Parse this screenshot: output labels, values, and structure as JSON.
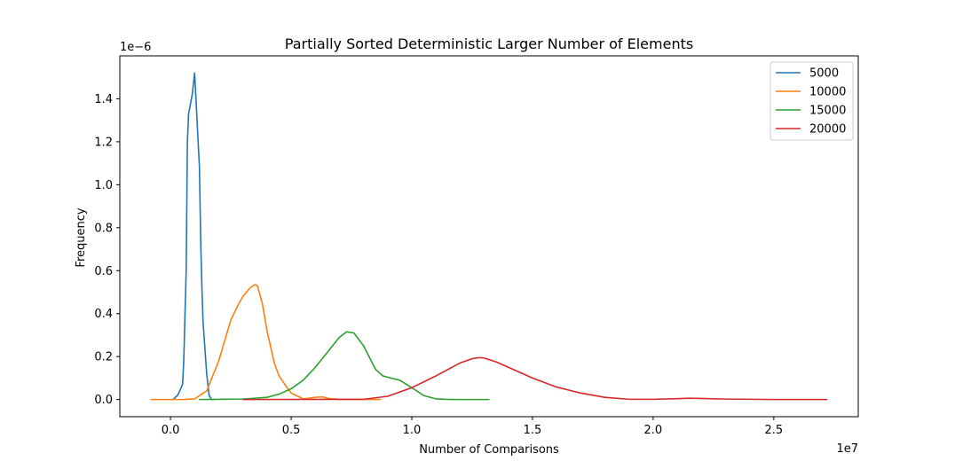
{
  "chart_data": {
    "type": "line",
    "title": "Partially Sorted Deterministic Larger Number of Elements",
    "xlabel": "Number of Comparisons",
    "ylabel": "Frequency",
    "x_offset_label": "1e7",
    "y_offset_label": "1e−6",
    "xlim": [
      -0.21,
      2.85
    ],
    "ylim": [
      -0.08,
      1.6
    ],
    "x_ticks": [
      0.0,
      0.5,
      1.0,
      1.5,
      2.0,
      2.5
    ],
    "x_tick_labels": [
      "0.0",
      "0.5",
      "1.0",
      "1.5",
      "2.0",
      "2.5"
    ],
    "y_ticks": [
      0.0,
      0.2,
      0.4,
      0.6,
      0.8,
      1.0,
      1.2,
      1.4
    ],
    "y_tick_labels": [
      "0.0",
      "0.2",
      "0.4",
      "0.6",
      "0.8",
      "1.0",
      "1.2",
      "1.4"
    ],
    "grid": false,
    "legend_position": "top-right",
    "series": [
      {
        "name": "5000",
        "color": "#1f77b4",
        "x": [
          0.01,
          0.03,
          0.05,
          0.055,
          0.065,
          0.07,
          0.075,
          0.08,
          0.09,
          0.1,
          0.12,
          0.125,
          0.13,
          0.135,
          0.14,
          0.15,
          0.16,
          0.165,
          0.17,
          0.18
        ],
        "y": [
          0.0,
          0.02,
          0.07,
          0.18,
          0.6,
          1.2,
          1.33,
          1.36,
          1.42,
          1.52,
          1.08,
          0.75,
          0.53,
          0.36,
          0.28,
          0.12,
          0.02,
          0.01,
          0.0,
          0.0
        ]
      },
      {
        "name": "10000",
        "color": "#ff7f0e",
        "x": [
          -0.08,
          0.05,
          0.1,
          0.15,
          0.2,
          0.25,
          0.28,
          0.3,
          0.33,
          0.35,
          0.36,
          0.38,
          0.4,
          0.43,
          0.45,
          0.48,
          0.5,
          0.55,
          0.6,
          0.63,
          0.66,
          0.7,
          0.75,
          0.8,
          0.87
        ],
        "y": [
          0.0,
          0.0,
          0.003,
          0.04,
          0.18,
          0.37,
          0.44,
          0.48,
          0.52,
          0.535,
          0.53,
          0.45,
          0.32,
          0.17,
          0.11,
          0.06,
          0.03,
          0.003,
          0.01,
          0.012,
          0.004,
          0.0005,
          0.0,
          0.0,
          0.0
        ]
      },
      {
        "name": "15000",
        "color": "#2ca02c",
        "x": [
          0.12,
          0.3,
          0.4,
          0.45,
          0.5,
          0.55,
          0.6,
          0.65,
          0.7,
          0.73,
          0.76,
          0.8,
          0.85,
          0.88,
          0.92,
          0.95,
          1.0,
          1.05,
          1.1,
          1.15,
          1.2,
          1.32
        ],
        "y": [
          0.0,
          0.002,
          0.01,
          0.025,
          0.05,
          0.09,
          0.15,
          0.22,
          0.29,
          0.315,
          0.31,
          0.25,
          0.14,
          0.11,
          0.098,
          0.09,
          0.055,
          0.018,
          0.003,
          0.0005,
          0.0,
          0.0
        ]
      },
      {
        "name": "20000",
        "color": "#d62728",
        "x": [
          0.3,
          0.8,
          0.9,
          1.0,
          1.1,
          1.2,
          1.25,
          1.28,
          1.3,
          1.35,
          1.4,
          1.5,
          1.6,
          1.7,
          1.8,
          1.9,
          2.0,
          2.1,
          2.15,
          2.2,
          2.3,
          2.5,
          2.72
        ],
        "y": [
          0.0,
          0.001,
          0.015,
          0.055,
          0.11,
          0.17,
          0.19,
          0.195,
          0.193,
          0.175,
          0.15,
          0.1,
          0.058,
          0.03,
          0.01,
          0.001,
          0.001,
          0.004,
          0.006,
          0.005,
          0.002,
          0.0,
          0.0
        ]
      }
    ]
  }
}
